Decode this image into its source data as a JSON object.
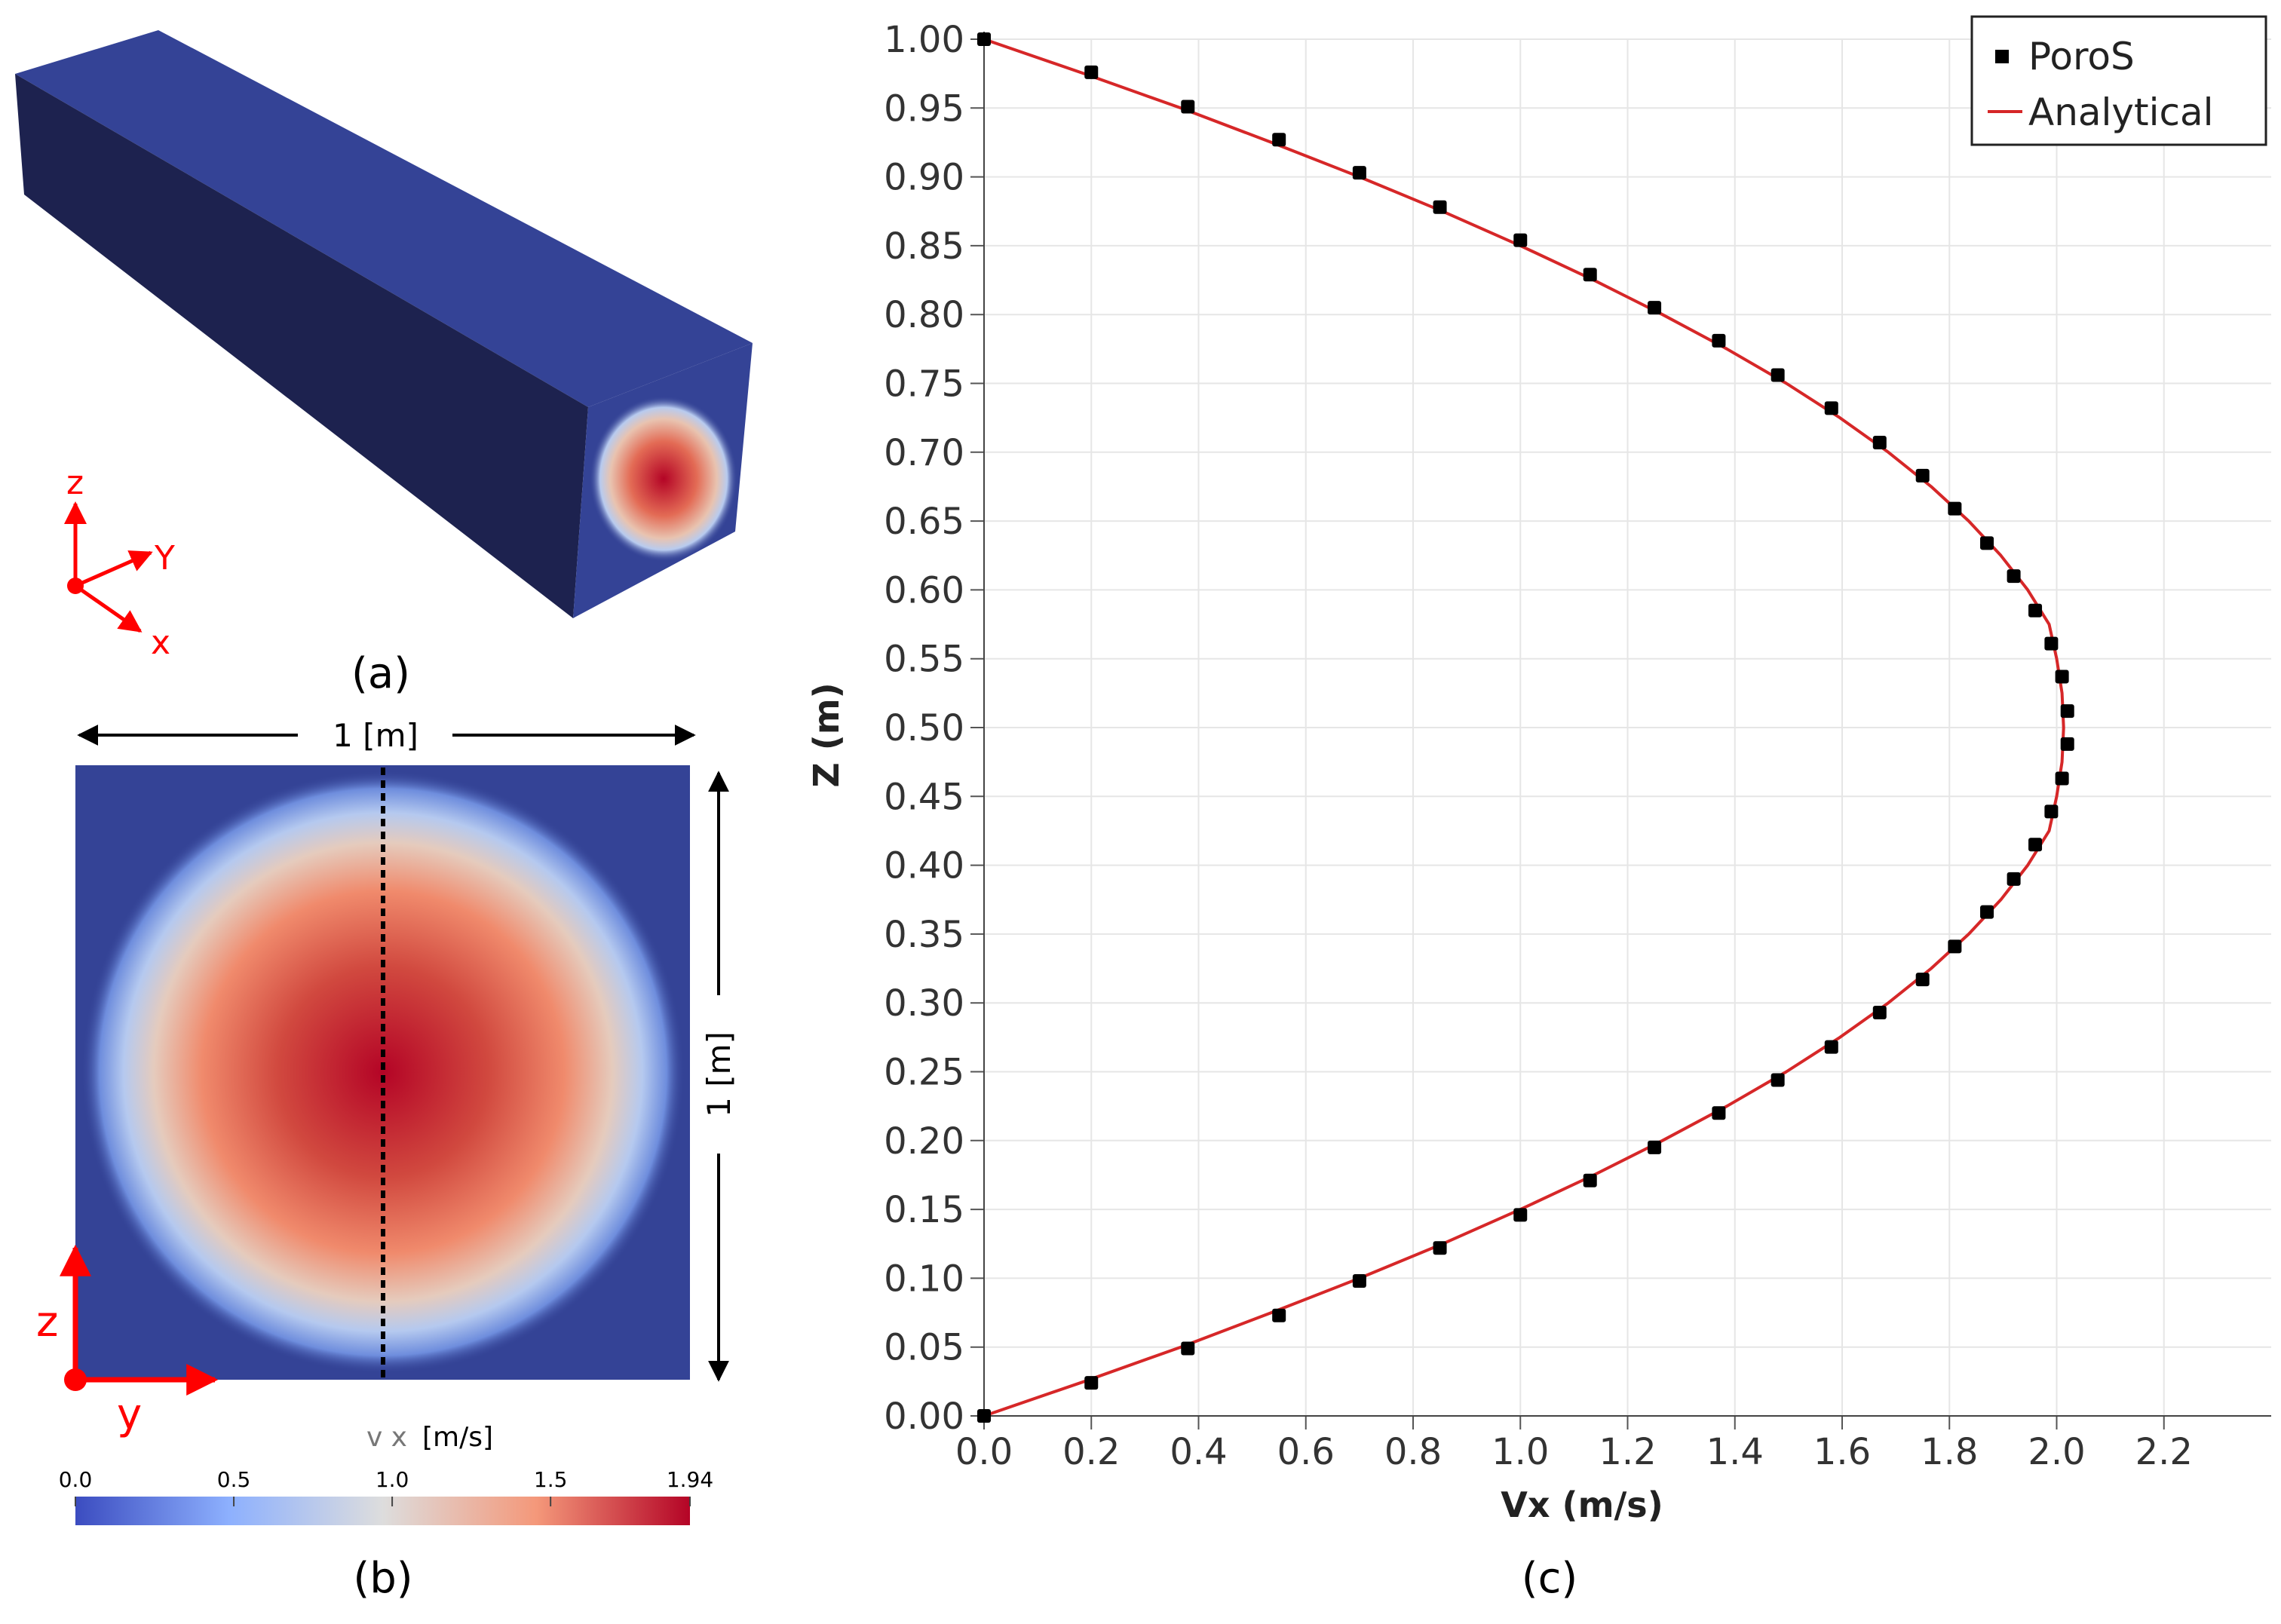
{
  "panels": {
    "a": {
      "label": "(a)",
      "axes": {
        "z": "z",
        "y": "Y",
        "x": "x"
      }
    },
    "b": {
      "label": "(b)",
      "width_label": "1 [m]",
      "height_label": "1 [m]",
      "axes": {
        "z": "z",
        "y": "y"
      },
      "colorbar": {
        "title_var": "v x",
        "title_unit": "[m/s]",
        "ticks": [
          "0.0",
          "0.5",
          "1.0",
          "1.5",
          "1.94"
        ],
        "min": 0.0,
        "max": 1.94
      }
    },
    "c": {
      "label": "(c)"
    }
  },
  "colors": {
    "cold": "#3b4cc0",
    "mid": "#dddddd",
    "hot": "#b40426",
    "block_top": "#344396",
    "block_side": "#1d224f",
    "axis_red": "#ff0000",
    "analytical": "#d62728",
    "poros": "#000000"
  },
  "chart_data": {
    "type": "scatter",
    "xlabel": "Vx (m/s)",
    "ylabel": "Z (m)",
    "xlim": [
      0.0,
      2.4
    ],
    "ylim": [
      0.0,
      1.0
    ],
    "xticks": [
      "0.0",
      "0.2",
      "0.4",
      "0.6",
      "0.8",
      "1.0",
      "1.2",
      "1.4",
      "1.6",
      "1.8",
      "2.0",
      "2.2"
    ],
    "yticks": [
      "0.00",
      "0.05",
      "0.10",
      "0.15",
      "0.20",
      "0.25",
      "0.30",
      "0.35",
      "0.40",
      "0.45",
      "0.50",
      "0.55",
      "0.60",
      "0.65",
      "0.70",
      "0.75",
      "0.80",
      "0.85",
      "0.90",
      "0.95",
      "1.00"
    ],
    "grid": true,
    "legend_position": "top-right",
    "series": [
      {
        "name": "PoroS",
        "marker": "square",
        "points": [
          [
            0.0,
            1.0
          ],
          [
            0.2,
            0.976
          ],
          [
            0.38,
            0.951
          ],
          [
            0.55,
            0.927
          ],
          [
            0.7,
            0.903
          ],
          [
            0.85,
            0.878
          ],
          [
            1.0,
            0.854
          ],
          [
            1.13,
            0.829
          ],
          [
            1.25,
            0.805
          ],
          [
            1.37,
            0.781
          ],
          [
            1.48,
            0.756
          ],
          [
            1.58,
            0.732
          ],
          [
            1.67,
            0.707
          ],
          [
            1.75,
            0.683
          ],
          [
            1.81,
            0.659
          ],
          [
            1.87,
            0.634
          ],
          [
            1.92,
            0.61
          ],
          [
            1.96,
            0.585
          ],
          [
            1.99,
            0.561
          ],
          [
            2.01,
            0.537
          ],
          [
            2.02,
            0.512
          ],
          [
            2.02,
            0.488
          ],
          [
            2.01,
            0.463
          ],
          [
            1.99,
            0.439
          ],
          [
            1.96,
            0.415
          ],
          [
            1.92,
            0.39
          ],
          [
            1.87,
            0.366
          ],
          [
            1.81,
            0.341
          ],
          [
            1.75,
            0.317
          ],
          [
            1.67,
            0.293
          ],
          [
            1.58,
            0.268
          ],
          [
            1.48,
            0.244
          ],
          [
            1.37,
            0.22
          ],
          [
            1.25,
            0.195
          ],
          [
            1.13,
            0.171
          ],
          [
            1.0,
            0.146
          ],
          [
            0.85,
            0.122
          ],
          [
            0.7,
            0.098
          ],
          [
            0.55,
            0.073
          ],
          [
            0.38,
            0.049
          ],
          [
            0.2,
            0.024
          ],
          [
            0.0,
            0.0
          ]
        ]
      },
      {
        "name": "Analytical",
        "line": true,
        "points": [
          [
            0.0,
            0.0
          ],
          [
            0.187,
            0.025
          ],
          [
            0.367,
            0.05
          ],
          [
            0.536,
            0.075
          ],
          [
            0.7,
            0.1
          ],
          [
            0.855,
            0.125
          ],
          [
            1.0,
            0.15
          ],
          [
            1.137,
            0.175
          ],
          [
            1.265,
            0.2
          ],
          [
            1.385,
            0.225
          ],
          [
            1.496,
            0.25
          ],
          [
            1.596,
            0.275
          ],
          [
            1.686,
            0.3
          ],
          [
            1.766,
            0.325
          ],
          [
            1.836,
            0.35
          ],
          [
            1.896,
            0.375
          ],
          [
            1.946,
            0.4
          ],
          [
            1.986,
            0.425
          ],
          [
            2.0,
            0.45
          ],
          [
            2.01,
            0.475
          ],
          [
            2.013,
            0.5
          ],
          [
            2.01,
            0.525
          ],
          [
            2.0,
            0.55
          ],
          [
            1.986,
            0.575
          ],
          [
            1.946,
            0.6
          ],
          [
            1.896,
            0.625
          ],
          [
            1.836,
            0.65
          ],
          [
            1.766,
            0.675
          ],
          [
            1.686,
            0.7
          ],
          [
            1.596,
            0.725
          ],
          [
            1.496,
            0.75
          ],
          [
            1.385,
            0.775
          ],
          [
            1.265,
            0.8
          ],
          [
            1.137,
            0.825
          ],
          [
            1.0,
            0.85
          ],
          [
            0.855,
            0.875
          ],
          [
            0.7,
            0.9
          ],
          [
            0.536,
            0.925
          ],
          [
            0.367,
            0.95
          ],
          [
            0.187,
            0.975
          ],
          [
            0.0,
            1.0
          ]
        ]
      }
    ]
  }
}
